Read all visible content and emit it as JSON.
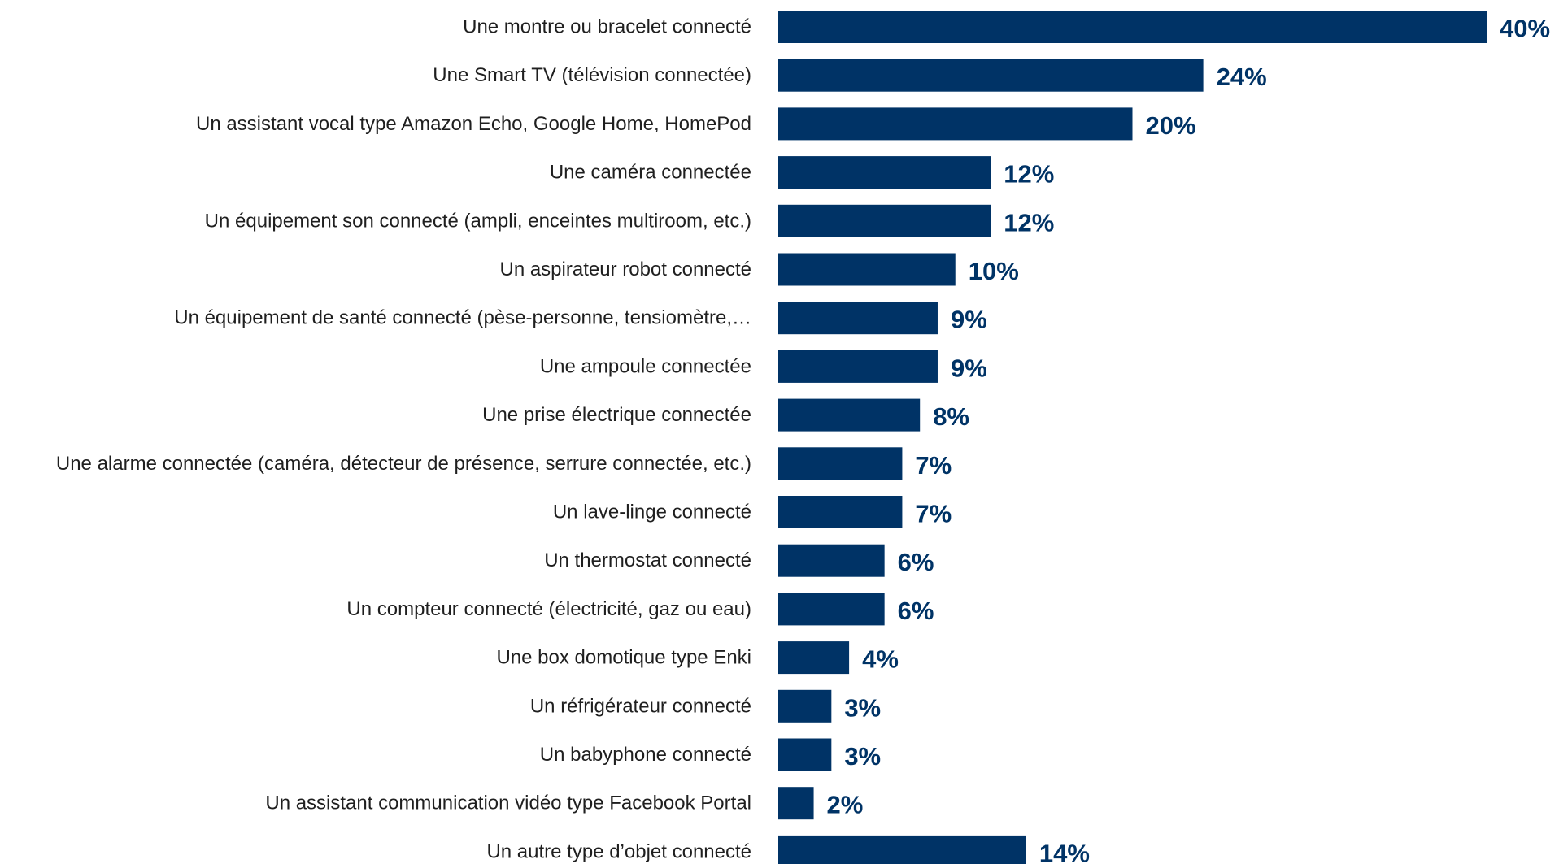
{
  "chart_data": {
    "type": "bar",
    "orientation": "horizontal",
    "title": "",
    "xlabel": "",
    "ylabel": "",
    "categories": [
      "Une montre ou bracelet connecté",
      "Une Smart TV (télévision connectée)",
      "Un assistant vocal type Amazon Echo, Google Home, HomePod",
      "Une caméra connectée",
      "Un équipement son connecté (ampli, enceintes multiroom, etc.)",
      "Un aspirateur robot connecté",
      "Un équipement de santé connecté (pèse-personne, tensiomètre,…",
      "Une ampoule connectée",
      "Une prise électrique connectée",
      "Une alarme connectée (caméra, détecteur de présence, serrure connectée, etc.)",
      "Un lave-linge connecté",
      "Un thermostat connecté",
      "Un compteur connecté (électricité, gaz ou eau)",
      "Une box domotique type Enki",
      "Un réfrigérateur connecté",
      "Un babyphone connecté",
      "Un assistant communication vidéo type Facebook Portal",
      "Un autre type d’objet connecté"
    ],
    "values": [
      40,
      24,
      20,
      12,
      12,
      10,
      9,
      9,
      8,
      7,
      7,
      6,
      6,
      4,
      3,
      3,
      2,
      14
    ],
    "value_labels": [
      "40%",
      "24%",
      "20%",
      "12%",
      "12%",
      "10%",
      "9%",
      "9%",
      "8%",
      "7%",
      "7%",
      "6%",
      "6%",
      "4%",
      "3%",
      "3%",
      "2%",
      "14%"
    ],
    "unit": "%",
    "xlim": [
      0,
      40
    ],
    "grid": false,
    "legend": "none",
    "colors": {
      "bar": "#003366",
      "value_label": "#003366",
      "category_label": "#1f1f1f"
    }
  }
}
